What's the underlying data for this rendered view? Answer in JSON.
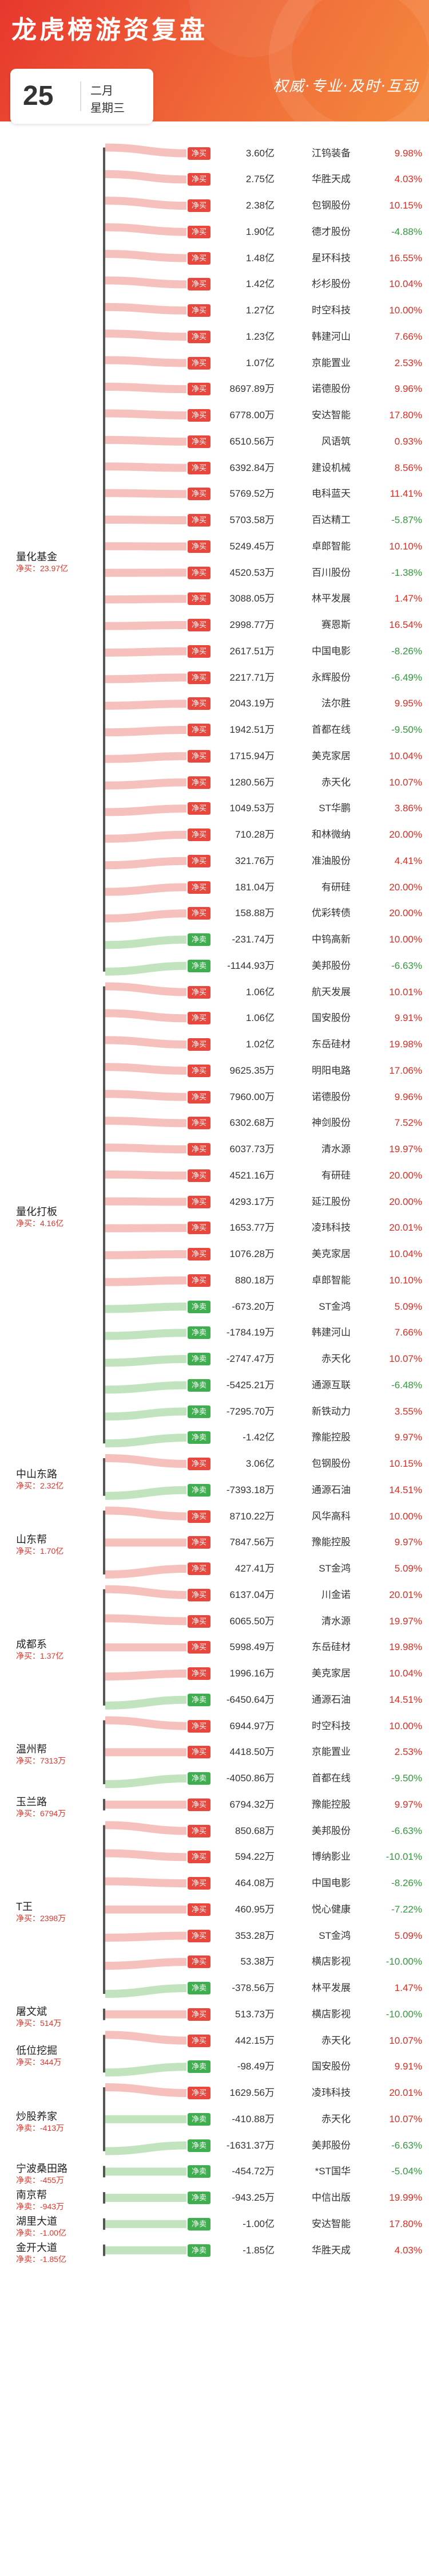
{
  "header": {
    "title": "龙虎榜游资复盘",
    "slogan": "权威·专业·及时·互动",
    "day": "25",
    "month": "二月",
    "weekday": "星期三"
  },
  "colors": {
    "buy": "#e8473d",
    "sell": "#3fae4f",
    "up": "#e02a20",
    "down": "#2f9a3b"
  },
  "groups": [
    {
      "name": "量化基金",
      "net": "净买：23.97亿",
      "rows": [
        {
          "tag": "净买",
          "amount": "3.60亿",
          "stock": "江钨装备",
          "pct": "9.98%"
        },
        {
          "tag": "净买",
          "amount": "2.75亿",
          "stock": "华胜天成",
          "pct": "4.03%"
        },
        {
          "tag": "净买",
          "amount": "2.38亿",
          "stock": "包钢股份",
          "pct": "10.15%"
        },
        {
          "tag": "净买",
          "amount": "1.90亿",
          "stock": "德才股份",
          "pct": "-4.88%"
        },
        {
          "tag": "净买",
          "amount": "1.48亿",
          "stock": "星环科技",
          "pct": "16.55%"
        },
        {
          "tag": "净买",
          "amount": "1.42亿",
          "stock": "杉杉股份",
          "pct": "10.04%"
        },
        {
          "tag": "净买",
          "amount": "1.27亿",
          "stock": "时空科技",
          "pct": "10.00%"
        },
        {
          "tag": "净买",
          "amount": "1.23亿",
          "stock": "韩建河山",
          "pct": "7.66%"
        },
        {
          "tag": "净买",
          "amount": "1.07亿",
          "stock": "京能置业",
          "pct": "2.53%"
        },
        {
          "tag": "净买",
          "amount": "8697.89万",
          "stock": "诺德股份",
          "pct": "9.96%"
        },
        {
          "tag": "净买",
          "amount": "6778.00万",
          "stock": "安达智能",
          "pct": "17.80%"
        },
        {
          "tag": "净买",
          "amount": "6510.56万",
          "stock": "风语筑",
          "pct": "0.93%"
        },
        {
          "tag": "净买",
          "amount": "6392.84万",
          "stock": "建设机械",
          "pct": "8.56%"
        },
        {
          "tag": "净买",
          "amount": "5769.52万",
          "stock": "电科蓝天",
          "pct": "11.41%"
        },
        {
          "tag": "净买",
          "amount": "5703.58万",
          "stock": "百达精工",
          "pct": "-5.87%"
        },
        {
          "tag": "净买",
          "amount": "5249.45万",
          "stock": "卓郎智能",
          "pct": "10.10%"
        },
        {
          "tag": "净买",
          "amount": "4520.53万",
          "stock": "百川股份",
          "pct": "-1.38%"
        },
        {
          "tag": "净买",
          "amount": "3088.05万",
          "stock": "林平发展",
          "pct": "1.47%"
        },
        {
          "tag": "净买",
          "amount": "2998.77万",
          "stock": "赛恩斯",
          "pct": "16.54%"
        },
        {
          "tag": "净买",
          "amount": "2617.51万",
          "stock": "中国电影",
          "pct": "-8.26%"
        },
        {
          "tag": "净买",
          "amount": "2217.71万",
          "stock": "永辉股份",
          "pct": "-6.49%"
        },
        {
          "tag": "净买",
          "amount": "2043.19万",
          "stock": "法尔胜",
          "pct": "9.95%"
        },
        {
          "tag": "净买",
          "amount": "1942.51万",
          "stock": "首都在线",
          "pct": "-9.50%"
        },
        {
          "tag": "净买",
          "amount": "1715.94万",
          "stock": "美克家居",
          "pct": "10.04%"
        },
        {
          "tag": "净买",
          "amount": "1280.56万",
          "stock": "赤天化",
          "pct": "10.07%"
        },
        {
          "tag": "净买",
          "amount": "1049.53万",
          "stock": "ST华鹏",
          "pct": "3.86%"
        },
        {
          "tag": "净买",
          "amount": "710.28万",
          "stock": "和林微纳",
          "pct": "20.00%"
        },
        {
          "tag": "净买",
          "amount": "321.76万",
          "stock": "准油股份",
          "pct": "4.41%"
        },
        {
          "tag": "净买",
          "amount": "181.04万",
          "stock": "有研硅",
          "pct": "20.00%"
        },
        {
          "tag": "净买",
          "amount": "158.88万",
          "stock": "优彩转债",
          "pct": "20.00%"
        },
        {
          "tag": "净卖",
          "amount": "-231.74万",
          "stock": "中钨高新",
          "pct": "10.00%"
        },
        {
          "tag": "净卖",
          "amount": "-1144.93万",
          "stock": "美邦股份",
          "pct": "-6.63%"
        }
      ]
    },
    {
      "name": "量化打板",
      "net": "净买：4.16亿",
      "rows": [
        {
          "tag": "净买",
          "amount": "1.06亿",
          "stock": "航天发展",
          "pct": "10.01%"
        },
        {
          "tag": "净买",
          "amount": "1.06亿",
          "stock": "国安股份",
          "pct": "9.91%"
        },
        {
          "tag": "净买",
          "amount": "1.02亿",
          "stock": "东岳硅材",
          "pct": "19.98%"
        },
        {
          "tag": "净买",
          "amount": "9625.35万",
          "stock": "明阳电路",
          "pct": "17.06%"
        },
        {
          "tag": "净买",
          "amount": "7960.00万",
          "stock": "诺德股份",
          "pct": "9.96%"
        },
        {
          "tag": "净买",
          "amount": "6302.68万",
          "stock": "神剑股份",
          "pct": "7.52%"
        },
        {
          "tag": "净买",
          "amount": "6037.73万",
          "stock": "清水源",
          "pct": "19.97%"
        },
        {
          "tag": "净买",
          "amount": "4521.16万",
          "stock": "有研硅",
          "pct": "20.00%"
        },
        {
          "tag": "净买",
          "amount": "4293.17万",
          "stock": "延江股份",
          "pct": "20.00%"
        },
        {
          "tag": "净买",
          "amount": "1653.77万",
          "stock": "凌玮科技",
          "pct": "20.01%"
        },
        {
          "tag": "净买",
          "amount": "1076.28万",
          "stock": "美克家居",
          "pct": "10.04%"
        },
        {
          "tag": "净买",
          "amount": "880.18万",
          "stock": "卓郎智能",
          "pct": "10.10%"
        },
        {
          "tag": "净卖",
          "amount": "-673.20万",
          "stock": "ST金鸿",
          "pct": "5.09%"
        },
        {
          "tag": "净卖",
          "amount": "-1784.19万",
          "stock": "韩建河山",
          "pct": "7.66%"
        },
        {
          "tag": "净卖",
          "amount": "-2747.47万",
          "stock": "赤天化",
          "pct": "10.07%"
        },
        {
          "tag": "净卖",
          "amount": "-5425.21万",
          "stock": "通源互联",
          "pct": "-6.48%"
        },
        {
          "tag": "净卖",
          "amount": "-7295.70万",
          "stock": "新铁动力",
          "pct": "3.55%"
        },
        {
          "tag": "净卖",
          "amount": "-1.42亿",
          "stock": "豫能控股",
          "pct": "9.97%"
        }
      ]
    },
    {
      "name": "中山东路",
      "net": "净买：2.32亿",
      "rows": [
        {
          "tag": "净买",
          "amount": "3.06亿",
          "stock": "包钢股份",
          "pct": "10.15%"
        },
        {
          "tag": "净卖",
          "amount": "-7393.18万",
          "stock": "通源石油",
          "pct": "14.51%"
        }
      ]
    },
    {
      "name": "山东帮",
      "net": "净买：1.70亿",
      "rows": [
        {
          "tag": "净买",
          "amount": "8710.22万",
          "stock": "风华高科",
          "pct": "10.00%"
        },
        {
          "tag": "净买",
          "amount": "7847.56万",
          "stock": "豫能控股",
          "pct": "9.97%"
        },
        {
          "tag": "净买",
          "amount": "427.41万",
          "stock": "ST金鸿",
          "pct": "5.09%"
        }
      ]
    },
    {
      "name": "成都系",
      "net": "净买：1.37亿",
      "rows": [
        {
          "tag": "净买",
          "amount": "6137.04万",
          "stock": "川金诺",
          "pct": "20.01%"
        },
        {
          "tag": "净买",
          "amount": "6065.50万",
          "stock": "清水源",
          "pct": "19.97%"
        },
        {
          "tag": "净买",
          "amount": "5998.49万",
          "stock": "东岳硅材",
          "pct": "19.98%"
        },
        {
          "tag": "净买",
          "amount": "1996.16万",
          "stock": "美克家居",
          "pct": "10.04%"
        },
        {
          "tag": "净卖",
          "amount": "-6450.64万",
          "stock": "通源石油",
          "pct": "14.51%"
        }
      ]
    },
    {
      "name": "温州帮",
      "net": "净买：7313万",
      "rows": [
        {
          "tag": "净买",
          "amount": "6944.97万",
          "stock": "时空科技",
          "pct": "10.00%"
        },
        {
          "tag": "净买",
          "amount": "4418.50万",
          "stock": "京能置业",
          "pct": "2.53%"
        },
        {
          "tag": "净卖",
          "amount": "-4050.86万",
          "stock": "首都在线",
          "pct": "-9.50%"
        }
      ]
    },
    {
      "name": "玉兰路",
      "net": "净买：6794万",
      "rows": [
        {
          "tag": "净买",
          "amount": "6794.32万",
          "stock": "豫能控股",
          "pct": "9.97%"
        }
      ]
    },
    {
      "name": "T王",
      "net": "净买：2398万",
      "rows": [
        {
          "tag": "净买",
          "amount": "850.68万",
          "stock": "美邦股份",
          "pct": "-6.63%"
        },
        {
          "tag": "净买",
          "amount": "594.22万",
          "stock": "博纳影业",
          "pct": "-10.01%"
        },
        {
          "tag": "净买",
          "amount": "464.08万",
          "stock": "中国电影",
          "pct": "-8.26%"
        },
        {
          "tag": "净买",
          "amount": "460.95万",
          "stock": "悦心健康",
          "pct": "-7.22%"
        },
        {
          "tag": "净买",
          "amount": "353.28万",
          "stock": "ST金鸿",
          "pct": "5.09%"
        },
        {
          "tag": "净买",
          "amount": "53.38万",
          "stock": "横店影视",
          "pct": "-10.00%"
        },
        {
          "tag": "净卖",
          "amount": "-378.56万",
          "stock": "林平发展",
          "pct": "1.47%"
        }
      ]
    },
    {
      "name": "屠文斌",
      "net": "净买：514万",
      "rows": [
        {
          "tag": "净买",
          "amount": "513.73万",
          "stock": "横店影视",
          "pct": "-10.00%"
        }
      ]
    },
    {
      "name": "低位挖掘",
      "net": "净买：344万",
      "rows": [
        {
          "tag": "净买",
          "amount": "442.15万",
          "stock": "赤天化",
          "pct": "10.07%"
        },
        {
          "tag": "净卖",
          "amount": "-98.49万",
          "stock": "国安股份",
          "pct": "9.91%"
        }
      ]
    },
    {
      "name": "炒股养家",
      "net": "净卖：-413万",
      "rows": [
        {
          "tag": "净买",
          "amount": "1629.56万",
          "stock": "凌玮科技",
          "pct": "20.01%"
        },
        {
          "tag": "净卖",
          "amount": "-410.88万",
          "stock": "赤天化",
          "pct": "10.07%"
        },
        {
          "tag": "净卖",
          "amount": "-1631.37万",
          "stock": "美邦股份",
          "pct": "-6.63%"
        }
      ]
    },
    {
      "name": "宁波桑田路",
      "net": "净卖：-455万",
      "rows": [
        {
          "tag": "净卖",
          "amount": "-454.72万",
          "stock": "*ST国华",
          "pct": "-5.04%"
        }
      ]
    },
    {
      "name": "南京帮",
      "net": "净卖：-943万",
      "rows": [
        {
          "tag": "净卖",
          "amount": "-943.25万",
          "stock": "中信出版",
          "pct": "19.99%"
        }
      ]
    },
    {
      "name": "湖里大道",
      "net": "净卖：-1.00亿",
      "rows": [
        {
          "tag": "净卖",
          "amount": "-1.00亿",
          "stock": "安达智能",
          "pct": "17.80%"
        }
      ]
    },
    {
      "name": "金开大道",
      "net": "净卖：-1.85亿",
      "rows": [
        {
          "tag": "净卖",
          "amount": "-1.85亿",
          "stock": "华胜天成",
          "pct": "4.03%"
        }
      ]
    }
  ]
}
